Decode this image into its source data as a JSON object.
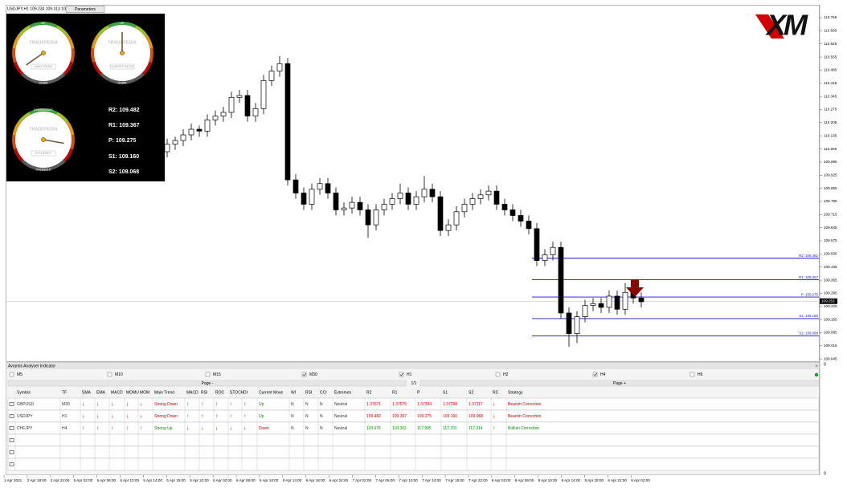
{
  "window_title": "USDJPY,H1 109.234 109.313 109.22",
  "parameters_button": "Parameters",
  "logo": "XM",
  "price_chart": {
    "ylim": [
      108.933,
      110.825
    ],
    "yticks": [
      110.765,
      110.695,
      110.625,
      110.555,
      110.485,
      110.415,
      110.345,
      110.275,
      110.205,
      110.135,
      110.065,
      109.995,
      109.925,
      109.855,
      109.785,
      109.715,
      109.645,
      109.575,
      109.505,
      109.435,
      109.365,
      109.295,
      109.225,
      109.155,
      109.085,
      109.015,
      108.945
    ],
    "current_price": 109.253,
    "candles": [
      [
        110.05,
        110.12,
        110.02,
        110.09
      ],
      [
        110.09,
        110.13,
        110.06,
        110.11
      ],
      [
        110.11,
        110.17,
        110.08,
        110.14
      ],
      [
        110.14,
        110.2,
        110.11,
        110.17
      ],
      [
        110.17,
        110.19,
        110.13,
        110.16
      ],
      [
        110.16,
        110.25,
        110.13,
        110.22
      ],
      [
        110.22,
        110.27,
        110.19,
        110.24
      ],
      [
        110.24,
        110.29,
        110.21,
        110.26
      ],
      [
        110.26,
        110.37,
        110.23,
        110.34
      ],
      [
        110.34,
        110.38,
        110.31,
        110.35
      ],
      [
        110.35,
        110.38,
        110.21,
        110.24
      ],
      [
        110.24,
        110.31,
        110.21,
        110.28
      ],
      [
        110.28,
        110.46,
        110.25,
        110.43
      ],
      [
        110.43,
        110.51,
        110.4,
        110.48
      ],
      [
        110.48,
        110.56,
        110.45,
        110.52
      ],
      [
        110.52,
        110.55,
        109.87,
        109.9
      ],
      [
        109.9,
        109.93,
        109.8,
        109.83
      ],
      [
        109.83,
        109.86,
        109.74,
        109.77
      ],
      [
        109.77,
        109.88,
        109.74,
        109.85
      ],
      [
        109.85,
        109.91,
        109.82,
        109.88
      ],
      [
        109.88,
        109.91,
        109.8,
        109.83
      ],
      [
        109.83,
        109.86,
        109.71,
        109.74
      ],
      [
        109.74,
        109.78,
        109.71,
        109.75
      ],
      [
        109.75,
        109.81,
        109.72,
        109.78
      ],
      [
        109.78,
        109.81,
        109.71,
        109.74
      ],
      [
        109.74,
        109.77,
        109.59,
        109.66
      ],
      [
        109.66,
        109.77,
        109.63,
        109.74
      ],
      [
        109.74,
        109.8,
        109.71,
        109.77
      ],
      [
        109.77,
        109.83,
        109.74,
        109.8
      ],
      [
        109.8,
        109.88,
        109.77,
        109.83
      ],
      [
        109.83,
        109.86,
        109.74,
        109.77
      ],
      [
        109.77,
        109.84,
        109.74,
        109.81
      ],
      [
        109.81,
        109.92,
        109.78,
        109.85
      ],
      [
        109.85,
        109.88,
        109.78,
        109.81
      ],
      [
        109.81,
        109.84,
        109.6,
        109.63
      ],
      [
        109.63,
        109.69,
        109.6,
        109.66
      ],
      [
        109.66,
        109.76,
        109.63,
        109.73
      ],
      [
        109.73,
        109.8,
        109.7,
        109.77
      ],
      [
        109.77,
        109.83,
        109.74,
        109.8
      ],
      [
        109.8,
        109.85,
        109.77,
        109.82
      ],
      [
        109.82,
        109.87,
        109.79,
        109.84
      ],
      [
        109.84,
        109.87,
        109.74,
        109.77
      ],
      [
        109.77,
        109.8,
        109.71,
        109.74
      ],
      [
        109.74,
        109.77,
        109.68,
        109.71
      ],
      [
        109.71,
        109.74,
        109.65,
        109.68
      ],
      [
        109.68,
        109.71,
        109.61,
        109.64
      ],
      [
        109.64,
        109.67,
        109.44,
        109.47
      ],
      [
        109.47,
        109.53,
        109.44,
        109.5
      ],
      [
        109.5,
        109.57,
        109.47,
        109.54
      ],
      [
        109.54,
        109.57,
        109.16,
        109.19
      ],
      [
        109.19,
        109.22,
        109.01,
        109.08
      ],
      [
        109.08,
        109.2,
        109.03,
        109.17
      ],
      [
        109.17,
        109.26,
        109.14,
        109.23
      ],
      [
        109.23,
        109.27,
        109.2,
        109.24
      ],
      [
        109.24,
        109.27,
        109.19,
        109.22
      ],
      [
        109.22,
        109.31,
        109.19,
        109.28
      ],
      [
        109.28,
        109.31,
        109.18,
        109.21
      ],
      [
        109.21,
        109.35,
        109.18,
        109.3
      ],
      [
        109.3,
        109.33,
        109.24,
        109.27
      ],
      [
        109.27,
        109.3,
        109.22,
        109.25
      ]
    ],
    "pivots": [
      {
        "label": "R2: 109.482",
        "value": 109.482
      },
      {
        "label": "R1: 109.367",
        "value": 109.367
      },
      {
        "label": "P:   109.275",
        "value": 109.275
      },
      {
        "label": "S1: 109.160",
        "value": 109.16
      },
      {
        "label": "S2: 109.068",
        "value": 109.068
      }
    ]
  },
  "sub_axis_labels": [
    "0",
    "0"
  ],
  "time_axis": [
    "1 Apr 2021",
    "2 Apr 18:00",
    "2 Apr 22:00",
    "5 Apr 02:00",
    "5 Apr 06:00",
    "5 Apr 10:00",
    "5 Apr 14:00",
    "5 Apr 18:00",
    "5 Apr 22:00",
    "6 Apr 02:00",
    "6 Apr 06:00",
    "6 Apr 10:00",
    "6 Apr 14:00",
    "6 Apr 18:00",
    "6 Apr 22:00",
    "7 Apr 02:00",
    "7 Apr 06:00",
    "7 Apr 10:00",
    "7 Apr 14:00",
    "7 Apr 18:00",
    "7 Apr 22:00",
    "8 Apr 02:00",
    "8 Apr 06:00",
    "8 Apr 10:00",
    "8 Apr 14:00",
    "8 Apr 18:00",
    "8 Apr 22:00",
    "9 Apr 02:00"
  ],
  "dashboard": {
    "gauges": [
      {
        "brand": "TRADEPEDIA",
        "caption": "MAIN TREND",
        "top": "UP",
        "bottom": "DOWN"
      },
      {
        "brand": "TRADEPEDIA",
        "caption": "CURRENT MOVE",
        "top": "UP",
        "bottom": "DOWN"
      },
      {
        "brand": "TRADEPEDIA",
        "caption": "EXTREMES",
        "top": "OVERBOUGHT",
        "bottom": "OVERSOLD"
      }
    ]
  },
  "panel": {
    "title": "Avramis Analyser Indicator",
    "close": "×",
    "timeframes": [
      {
        "label": "M5",
        "checked": false
      },
      {
        "label": "M10",
        "checked": false
      },
      {
        "label": "M15",
        "checked": false
      },
      {
        "label": "M30",
        "checked": true
      },
      {
        "label": "H1",
        "checked": true
      },
      {
        "label": "H2",
        "checked": false
      },
      {
        "label": "H4",
        "checked": true
      },
      {
        "label": "H6",
        "checked": false
      }
    ],
    "page_prev": "Page -",
    "page_info": "1/1",
    "page_next": "Page +",
    "headers": [
      "Symbol",
      "TF",
      "SMA",
      "EMA",
      "MACD",
      "MOMU",
      "MOM",
      "Main Trend",
      "MACD",
      "RSI",
      "ROC",
      "STOCH",
      "DI",
      "Current Move",
      "WI",
      "RSI",
      "CCI",
      "Extremes",
      "R2",
      "R1",
      "P",
      "S1",
      "S2",
      "RC",
      "Strategy"
    ],
    "rows": [
      [
        "GBPUSD",
        "M30",
        "↓",
        "↓",
        "↓",
        "↓",
        "↓",
        "Strong Down",
        "↑",
        "↑",
        "↑",
        "↑",
        "↑",
        "Up",
        "N",
        "N",
        "N",
        "Neutral",
        "1.37671",
        "1.37575",
        "1.37394",
        "1.37298",
        "1.37117",
        "↓",
        "Bearish Correction"
      ],
      [
        "USDJPY",
        "H1",
        "↓",
        "↓",
        "↓",
        "↓",
        "↓",
        "Strong Down",
        "↑",
        "↑",
        "↑",
        "↑",
        "↑",
        "Up",
        "N",
        "N",
        "N",
        "Neutral",
        "109.482",
        "109.367",
        "109.275",
        "109.160",
        "109.068",
        "↓",
        "Bearish Correction"
      ],
      [
        "CHFJPY",
        "H4",
        "↑",
        "↑",
        "↑",
        "↑",
        "↑",
        "Strong Up",
        "↓",
        "↓",
        "↓",
        "↓",
        "↓",
        "Down",
        "N",
        "N",
        "N",
        "Neutral",
        "118.676",
        "118.302",
        "117.995",
        "117.701",
        "117.314",
        "↑",
        "Bullish Correction"
      ]
    ]
  }
}
